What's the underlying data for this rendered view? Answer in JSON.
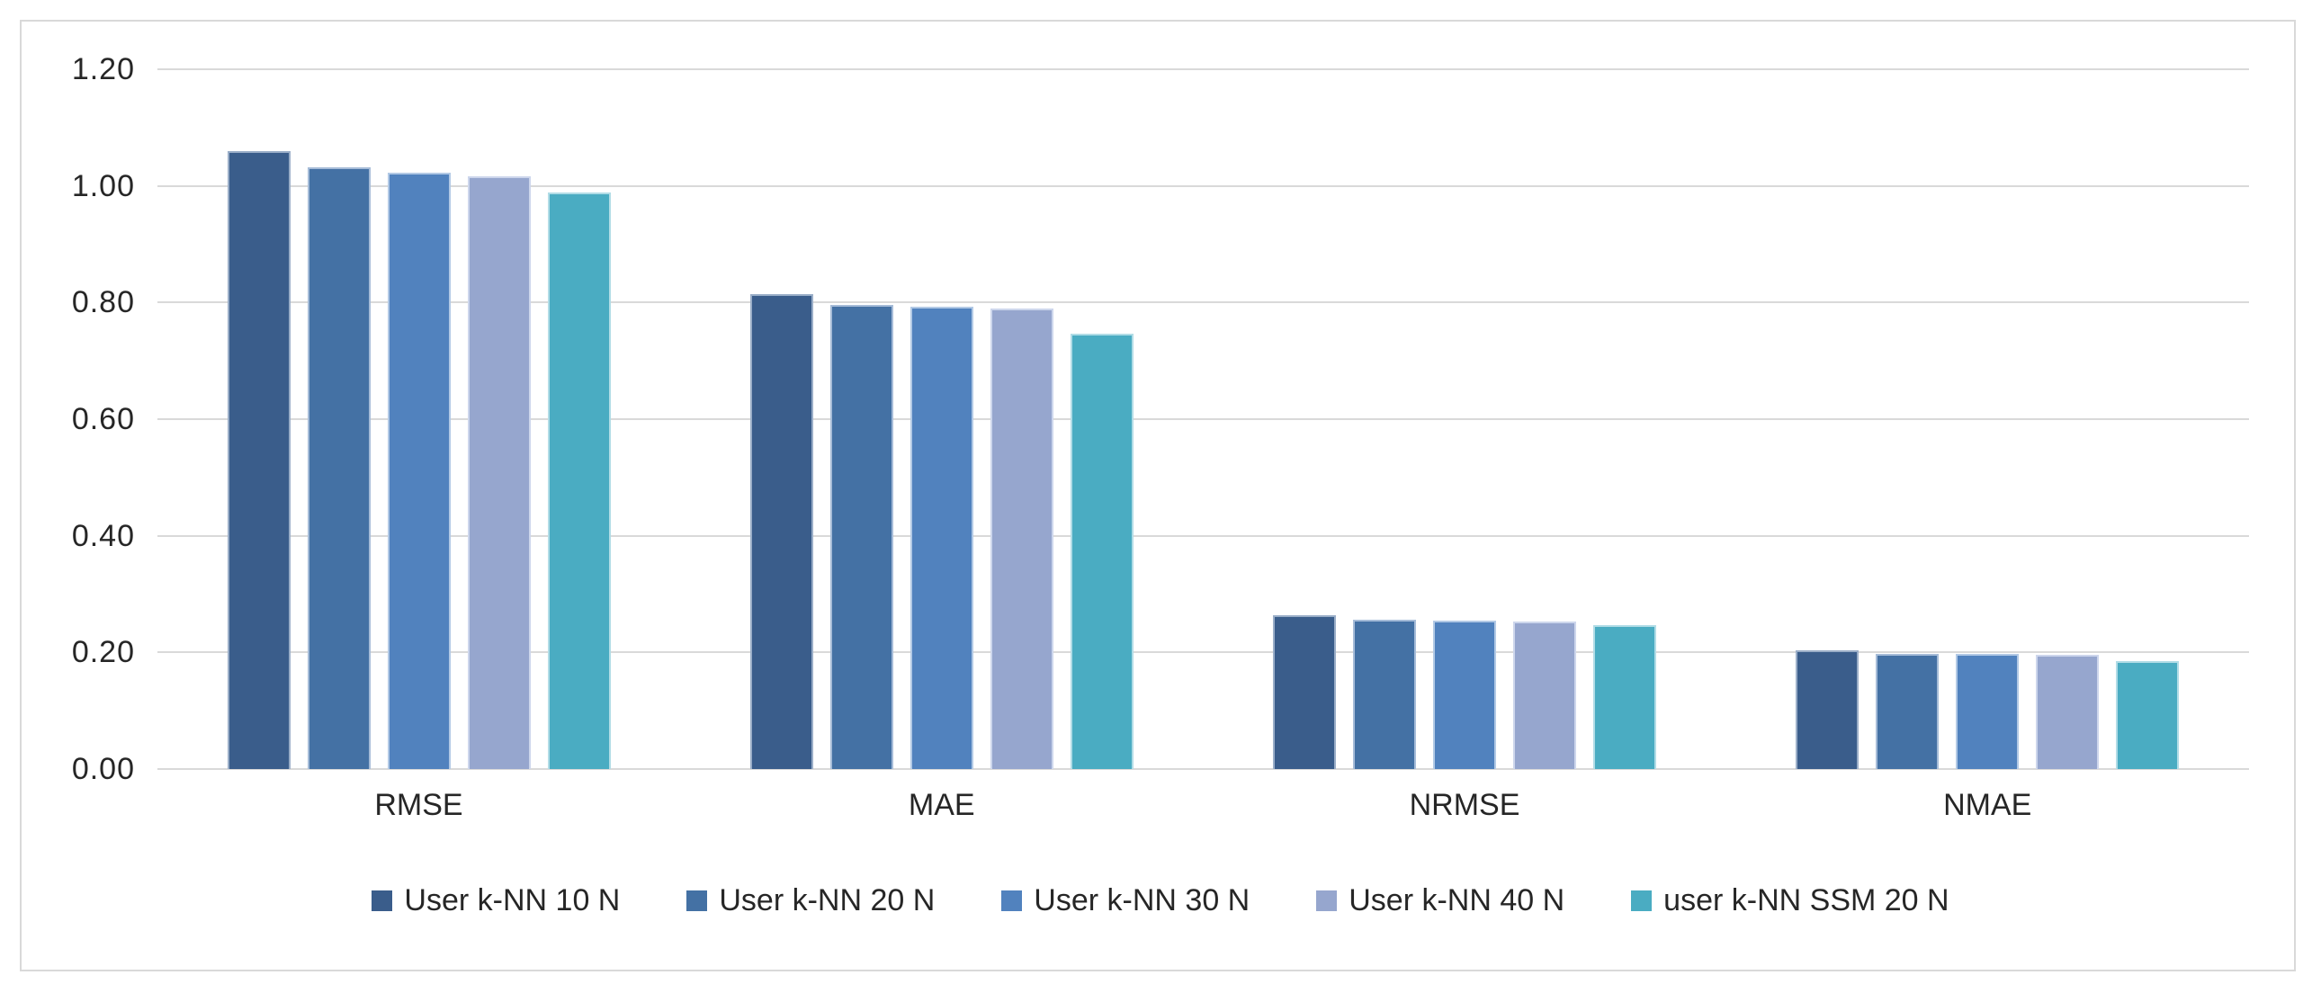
{
  "chart_data": {
    "type": "bar",
    "title": "",
    "categories": [
      "RMSE",
      "MAE",
      "NRMSE",
      "NMAE"
    ],
    "series": [
      {
        "name": "User k-NN 10 N",
        "color": "#3A5D8B",
        "border_color": "#9AAEC8",
        "values": [
          1.06,
          0.815,
          0.264,
          0.204
        ]
      },
      {
        "name": "User k-NN 20 N",
        "color": "#4471A4",
        "border_color": "#A6BCD8",
        "values": [
          1.032,
          0.796,
          0.256,
          0.198
        ]
      },
      {
        "name": "User k-NN 30 N",
        "color": "#5182BE",
        "border_color": "#B2C9E5",
        "values": [
          1.023,
          0.793,
          0.254,
          0.197
        ]
      },
      {
        "name": "User k-NN 40 N",
        "color": "#96A6CE",
        "border_color": "#CDD6EC",
        "values": [
          1.017,
          0.79,
          0.253,
          0.196
        ]
      },
      {
        "name": "user k-NN SSM 20 N",
        "color": "#4AACC2",
        "border_color": "#B1DCE6",
        "values": [
          0.989,
          0.747,
          0.247,
          0.185
        ]
      }
    ],
    "ylim": [
      0,
      1.2
    ],
    "ytick_step": 0.2,
    "ytick_labels": [
      "0.00",
      "0.20",
      "0.40",
      "0.60",
      "0.80",
      "1.00",
      "1.20"
    ],
    "grid": true,
    "legend_position": "bottom",
    "axis_text_color": "#262626",
    "gridline_color": "#D9D9D9",
    "frame_border_color": "#D9D9D9",
    "background": "#FFFFFF"
  }
}
